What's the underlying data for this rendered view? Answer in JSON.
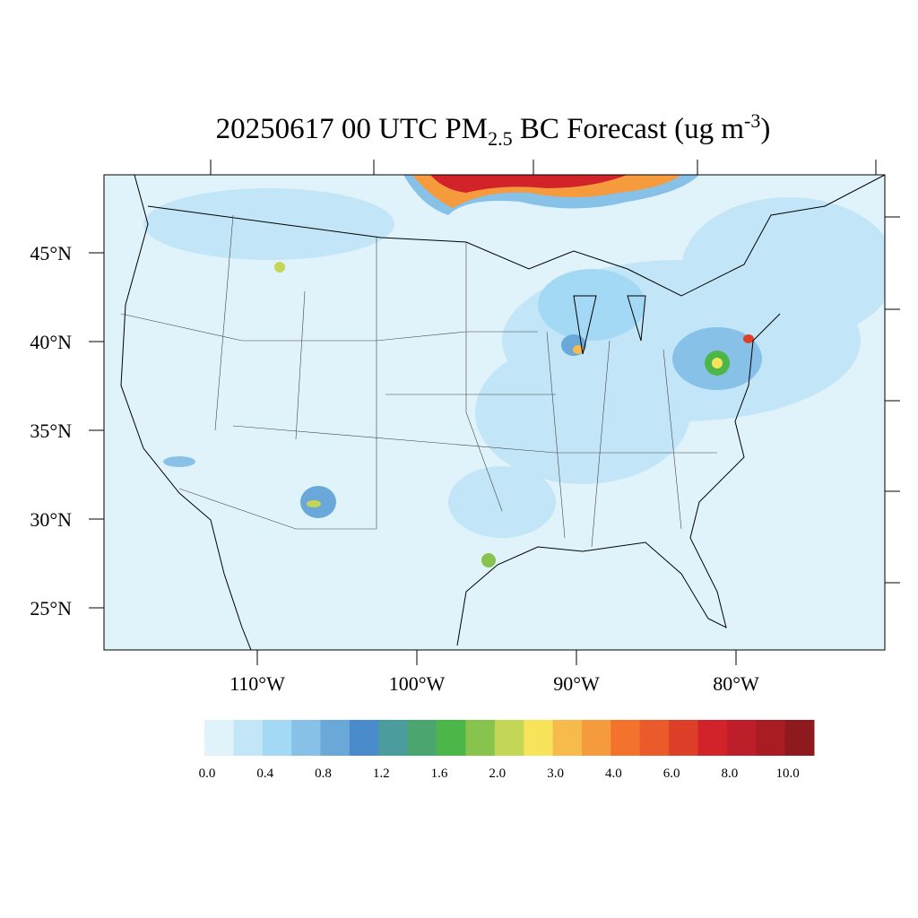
{
  "title": {
    "main": "20250617 00 UTC PM",
    "sub": "2.5",
    "rest": " BC Forecast (ug m",
    "sup": "-3",
    "end": ")"
  },
  "lat_ticks": [
    {
      "value": 45,
      "label": "45°N"
    },
    {
      "value": 40,
      "label": "40°N"
    },
    {
      "value": 35,
      "label": "35°N"
    },
    {
      "value": 30,
      "label": "30°N"
    },
    {
      "value": 25,
      "label": "25°N"
    }
  ],
  "lon_ticks": [
    {
      "value": 110,
      "label": "110°W"
    },
    {
      "value": 100,
      "label": "100°W"
    },
    {
      "value": 90,
      "label": "90°W"
    },
    {
      "value": 80,
      "label": "80°W"
    }
  ],
  "colorbar": {
    "colors": [
      "#e0f3fb",
      "#c2e6f7",
      "#a4d9f5",
      "#87c1e8",
      "#69a8d9",
      "#4a8bcb",
      "#4b9c9c",
      "#4aa56f",
      "#4cb748",
      "#87c44e",
      "#c4d655",
      "#f7e45a",
      "#f7bb4b",
      "#f59a3d",
      "#f3722c",
      "#eb5a2b",
      "#de3f28",
      "#d2232a",
      "#bd1e2a",
      "#a91c24",
      "#8e1a1f"
    ],
    "labels": [
      {
        "value": 0,
        "label": "0.0"
      },
      {
        "value": 0.4,
        "label": "0.4"
      },
      {
        "value": 0.8,
        "label": "0.8"
      },
      {
        "value": 1.2,
        "label": "1.2"
      },
      {
        "value": 1.6,
        "label": "1.6"
      },
      {
        "value": 2,
        "label": "2.0"
      },
      {
        "value": 3,
        "label": "3.0"
      },
      {
        "value": 4,
        "label": "4.0"
      },
      {
        "value": 6,
        "label": "6.0"
      },
      {
        "value": 8,
        "label": "8.0"
      },
      {
        "value": 10,
        "label": "10.0"
      }
    ]
  }
}
